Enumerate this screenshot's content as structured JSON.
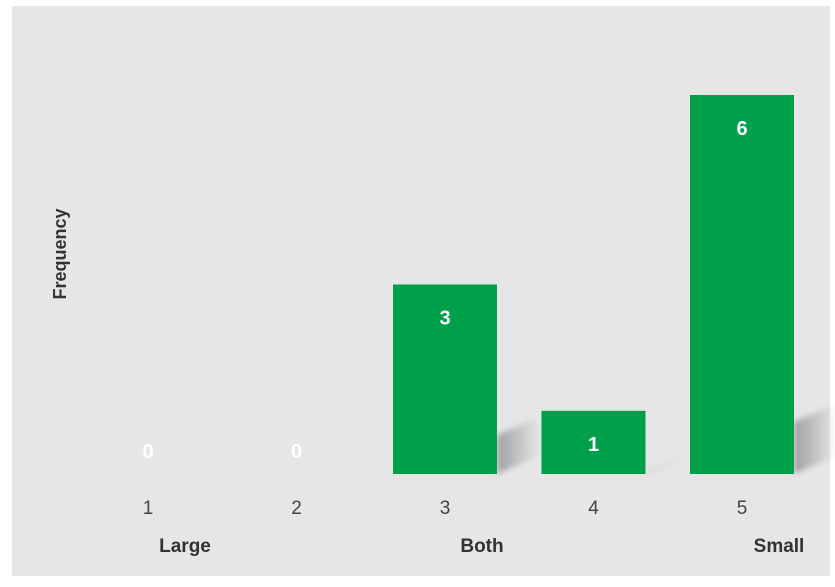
{
  "chart_data": {
    "type": "bar",
    "title": "",
    "xlabel": "",
    "ylabel": "Frequency",
    "categories": [
      "1",
      "2",
      "3",
      "4",
      "5"
    ],
    "category_group_labels": [
      {
        "category": "1",
        "label": "Large"
      },
      {
        "category": "3",
        "label": "Both"
      },
      {
        "category": "5",
        "label": "Small"
      }
    ],
    "values": [
      0,
      0,
      3,
      1,
      6
    ],
    "data_labels": [
      "0",
      "0",
      "3",
      "1",
      "6"
    ],
    "ylim": [
      0,
      6
    ],
    "grid": false,
    "legend": "none",
    "colors": {
      "bar": "#00a04b",
      "background": "#e6e6e6",
      "data_label": "#ffffff",
      "tick_label": "#444444",
      "axis_title": "#333333"
    }
  }
}
